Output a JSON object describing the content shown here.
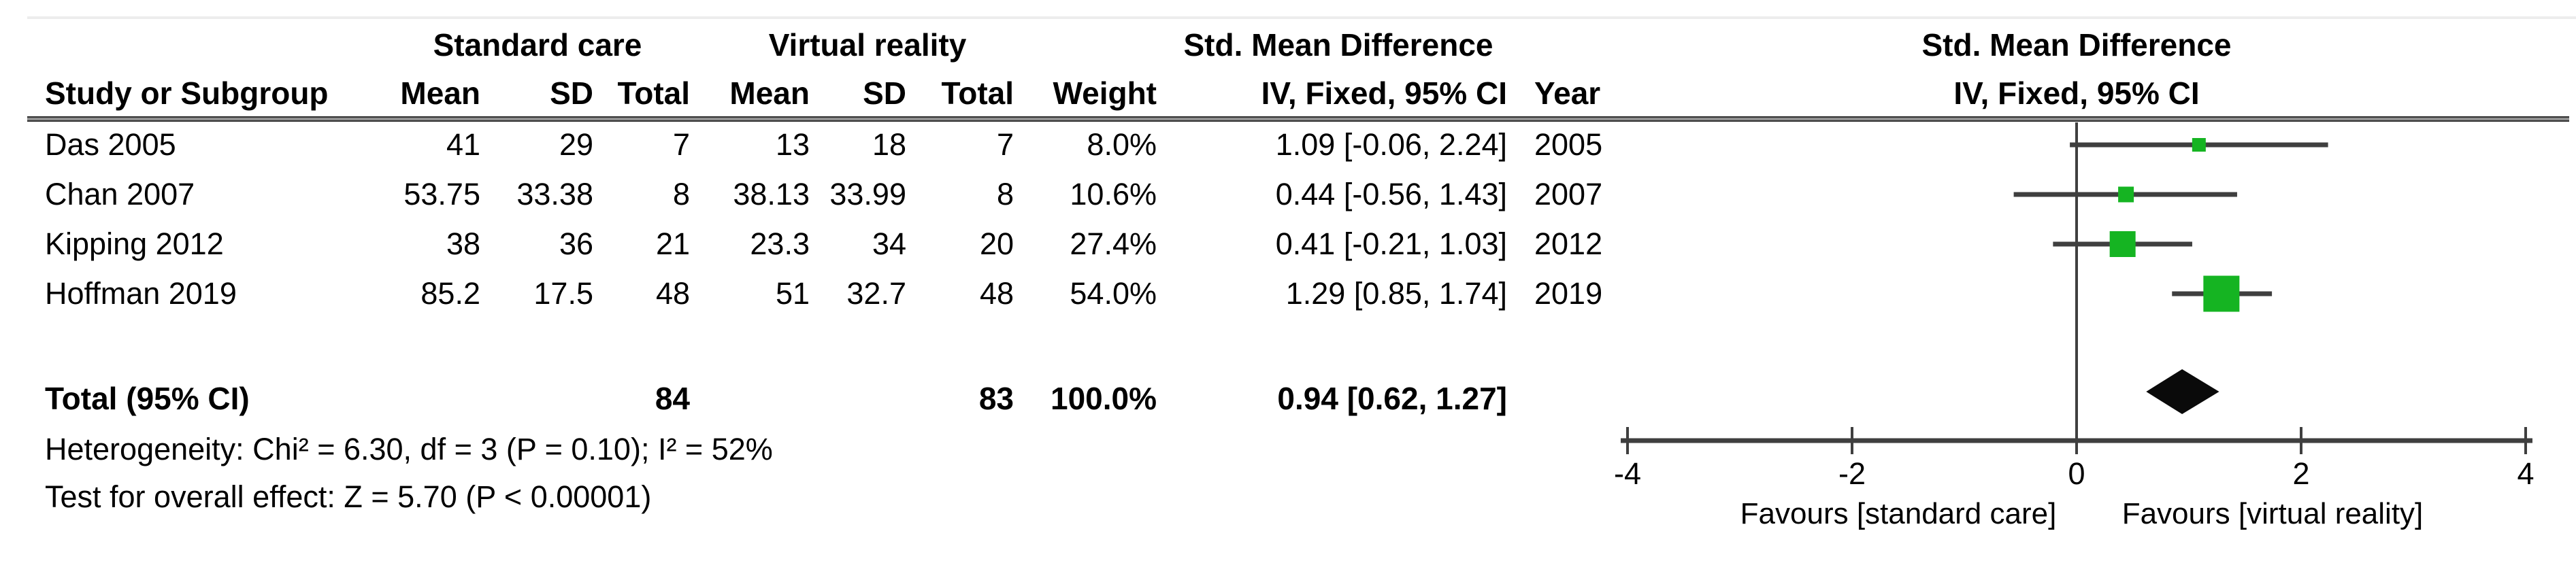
{
  "header": {
    "group1": "Standard care",
    "group2": "Virtual reality",
    "group3": "Std. Mean Difference",
    "col_study": "Study or Subgroup",
    "col_mean": "Mean",
    "col_sd": "SD",
    "col_total": "Total",
    "col_weight": "Weight",
    "col_ci": "IV, Fixed, 95% CI",
    "col_year": "Year",
    "plot_title1": "Std. Mean Difference",
    "plot_title2": "IV, Fixed, 95% CI"
  },
  "rows": [
    {
      "study": "Das 2005",
      "mean1": "41",
      "sd1": "29",
      "total1": "7",
      "mean2": "13",
      "sd2": "18",
      "total2": "7",
      "weight": "8.0%",
      "ci": "1.09 [-0.06, 2.24]",
      "year": "2005"
    },
    {
      "study": "Chan 2007",
      "mean1": "53.75",
      "sd1": "33.38",
      "total1": "8",
      "mean2": "38.13",
      "sd2": "33.99",
      "total2": "8",
      "weight": "10.6%",
      "ci": "0.44 [-0.56, 1.43]",
      "year": "2007"
    },
    {
      "study": "Kipping 2012",
      "mean1": "38",
      "sd1": "36",
      "total1": "21",
      "mean2": "23.3",
      "sd2": "34",
      "total2": "20",
      "weight": "27.4%",
      "ci": "0.41 [-0.21, 1.03]",
      "year": "2012"
    },
    {
      "study": "Hoffman 2019",
      "mean1": "85.2",
      "sd1": "17.5",
      "total1": "48",
      "mean2": "51",
      "sd2": "32.7",
      "total2": "48",
      "weight": "54.0%",
      "ci": "1.29 [0.85, 1.74]",
      "year": "2019"
    }
  ],
  "total_row": {
    "label": "Total (95% CI)",
    "total1": "84",
    "total2": "83",
    "weight": "100.0%",
    "ci": "0.94 [0.62, 1.27]"
  },
  "footer": {
    "heterogeneity": "Heterogeneity: Chi² = 6.30, df = 3 (P = 0.10); I² = 52%",
    "overall": "Test for overall effect: Z = 5.70 (P < 0.00001)"
  },
  "axis": {
    "ticks": [
      "-4",
      "-2",
      "0",
      "2",
      "4"
    ],
    "favours_left": "Favours [standard care]",
    "favours_right": "Favours [virtual reality]"
  },
  "colors": {
    "marker": "#15b422",
    "line": "#3f3f3f",
    "diamond": "#0a0a0a",
    "text": "#000000"
  },
  "chart_data": {
    "type": "scatter",
    "subtype": "forest-plot",
    "title": "Std. Mean Difference",
    "subtitle": "IV, Fixed, 95% CI",
    "model": "IV, Fixed, 95% CI",
    "xlim": [
      -4,
      4
    ],
    "x_ticks": [
      -4,
      -2,
      0,
      2,
      4
    ],
    "xlabel_left": "Favours [standard care]",
    "xlabel_right": "Favours [virtual reality]",
    "series": [
      {
        "name": "Das 2005",
        "x": 1.09,
        "ci": [
          -0.06,
          2.24
        ],
        "weight_pct": 8.0,
        "year": 2005
      },
      {
        "name": "Chan 2007",
        "x": 0.44,
        "ci": [
          -0.56,
          1.43
        ],
        "weight_pct": 10.6,
        "year": 2007
      },
      {
        "name": "Kipping 2012",
        "x": 0.41,
        "ci": [
          -0.21,
          1.03
        ],
        "weight_pct": 27.4,
        "year": 2012
      },
      {
        "name": "Hoffman 2019",
        "x": 1.29,
        "ci": [
          0.85,
          1.74
        ],
        "weight_pct": 54.0,
        "year": 2019
      }
    ],
    "total": {
      "name": "Total (95% CI)",
      "x": 0.94,
      "ci": [
        0.62,
        1.27
      ],
      "weight_pct": 100.0
    }
  }
}
